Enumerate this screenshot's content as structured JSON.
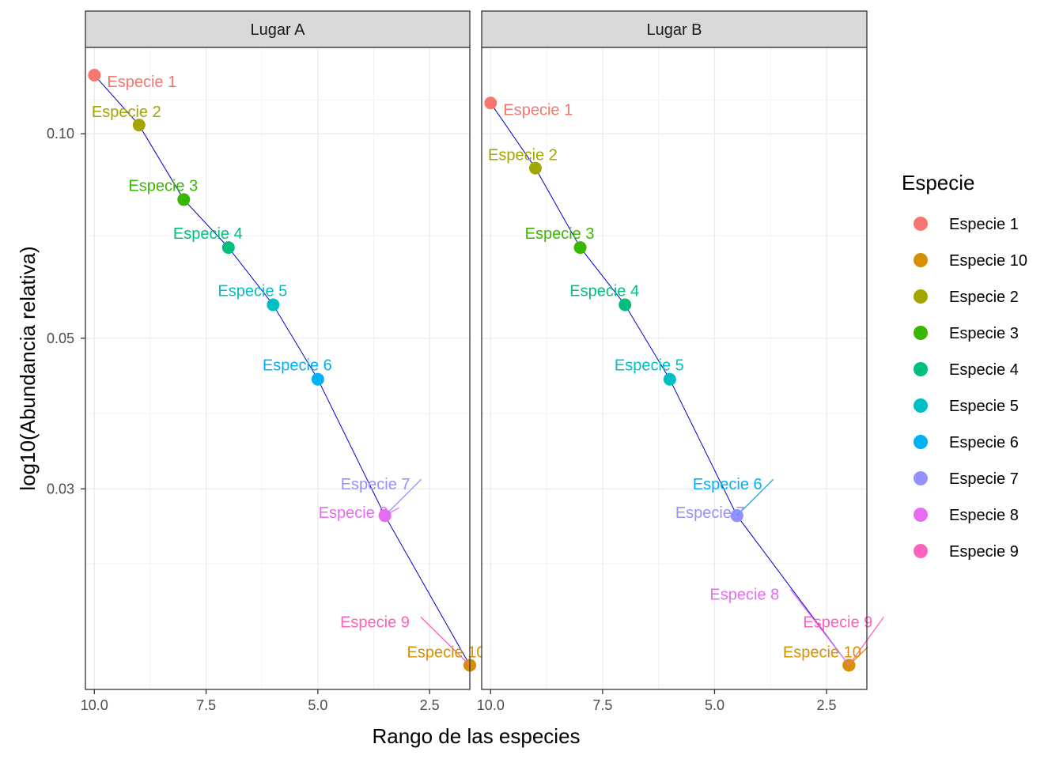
{
  "chart_data": {
    "type": "scatter",
    "xlabel": "Rango de las especies",
    "ylabel": "log10(Abundancia relativa)",
    "x_reversed": true,
    "y_scale": "log10",
    "xlim": [
      10.2,
      1.6
    ],
    "ylim": [
      0.0152,
      0.134
    ],
    "x_ticks": [
      {
        "value": 10,
        "label": "10.0"
      },
      {
        "value": 7.5,
        "label": "7.5"
      },
      {
        "value": 5,
        "label": "5.0"
      },
      {
        "value": 2.5,
        "label": "2.5"
      }
    ],
    "y_ticks": [
      {
        "value": 0.1,
        "label": "0.10"
      },
      {
        "value": 0.05,
        "label": "0.05"
      },
      {
        "value": 0.03,
        "label": "0.03"
      }
    ],
    "grid": true,
    "legend_title": "Especie",
    "legend_position": "right",
    "legend": [
      {
        "name": "Especie 1",
        "color": "#F8766D"
      },
      {
        "name": "Especie 10",
        "color": "#D89000"
      },
      {
        "name": "Especie 2",
        "color": "#A3A500"
      },
      {
        "name": "Especie 3",
        "color": "#39B600"
      },
      {
        "name": "Especie 4",
        "color": "#00BF7D"
      },
      {
        "name": "Especie 5",
        "color": "#00BFC4"
      },
      {
        "name": "Especie 6",
        "color": "#00B0F6"
      },
      {
        "name": "Especie 7",
        "color": "#9590FF"
      },
      {
        "name": "Especie 8",
        "color": "#E76BF3"
      },
      {
        "name": "Especie 9",
        "color": "#FF62BC"
      }
    ],
    "fit_line_color": "#0000CC",
    "panels": [
      {
        "title": "Lugar A",
        "points": [
          {
            "species": "Especie 1",
            "x": 10,
            "y": 0.122
          },
          {
            "species": "Especie 2",
            "x": 9,
            "y": 0.103
          },
          {
            "species": "Especie 3",
            "x": 8,
            "y": 0.08
          },
          {
            "species": "Especie 4",
            "x": 7,
            "y": 0.068
          },
          {
            "species": "Especie 5",
            "x": 6,
            "y": 0.056
          },
          {
            "species": "Especie 6",
            "x": 5,
            "y": 0.0435
          },
          {
            "species": "Especie 7",
            "x": 3.5,
            "y": 0.0274
          },
          {
            "species": "Especie 8",
            "x": 3.5,
            "y": 0.0274
          },
          {
            "species": "Especie 9",
            "x": 1.6,
            "y": 0.0165
          },
          {
            "species": "Especie 10",
            "x": 1.6,
            "y": 0.0165
          }
        ]
      },
      {
        "title": "Lugar B",
        "points": [
          {
            "species": "Especie 1",
            "x": 10,
            "y": 0.111
          },
          {
            "species": "Especie 2",
            "x": 9,
            "y": 0.089
          },
          {
            "species": "Especie 3",
            "x": 8,
            "y": 0.068
          },
          {
            "species": "Especie 4",
            "x": 7,
            "y": 0.056
          },
          {
            "species": "Especie 5",
            "x": 6,
            "y": 0.0435
          },
          {
            "species": "Especie 6",
            "x": 4.5,
            "y": 0.0274
          },
          {
            "species": "Especie 7",
            "x": 4.5,
            "y": 0.0274
          },
          {
            "species": "Especie 8",
            "x": 2,
            "y": 0.0165
          },
          {
            "species": "Especie 9",
            "x": 2,
            "y": 0.0165
          },
          {
            "species": "Especie 10",
            "x": 2,
            "y": 0.0165
          }
        ]
      }
    ]
  }
}
